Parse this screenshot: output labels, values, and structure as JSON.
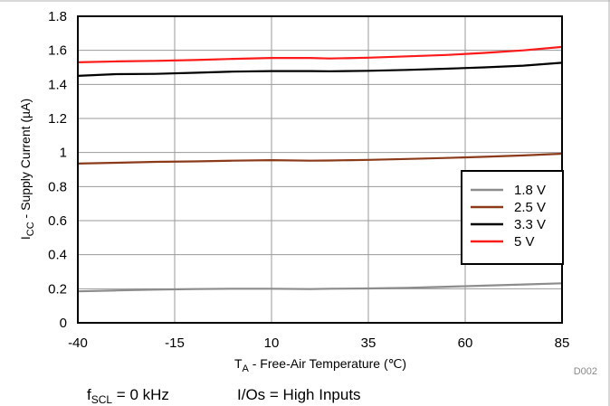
{
  "chart_data": {
    "type": "line",
    "x": [
      -40,
      -30,
      -20,
      -10,
      0,
      10,
      20,
      25,
      35,
      45,
      55,
      65,
      75,
      85
    ],
    "series": [
      {
        "name": "1.8 V",
        "color": "#8c8c8c",
        "values": [
          0.185,
          0.19,
          0.195,
          0.198,
          0.2,
          0.2,
          0.198,
          0.2,
          0.202,
          0.205,
          0.212,
          0.218,
          0.225,
          0.232
        ]
      },
      {
        "name": "2.5 V",
        "color": "#8b3a1a",
        "values": [
          0.935,
          0.94,
          0.945,
          0.948,
          0.952,
          0.955,
          0.952,
          0.953,
          0.957,
          0.962,
          0.968,
          0.975,
          0.983,
          0.993
        ]
      },
      {
        "name": "3.3 V",
        "color": "#000000",
        "values": [
          1.45,
          1.46,
          1.462,
          1.468,
          1.475,
          1.478,
          1.478,
          1.477,
          1.48,
          1.485,
          1.492,
          1.5,
          1.51,
          1.527
        ]
      },
      {
        "name": "5 V",
        "color": "#ff1a1a",
        "values": [
          1.53,
          1.535,
          1.538,
          1.543,
          1.55,
          1.555,
          1.555,
          1.552,
          1.557,
          1.565,
          1.573,
          1.585,
          1.6,
          1.62
        ]
      }
    ],
    "xticks": [
      "-40",
      "-15",
      "10",
      "35",
      "60",
      "85"
    ],
    "yticks": [
      "0",
      "0.2",
      "0.4",
      "0.6",
      "0.8",
      "1",
      "1.2",
      "1.4",
      "1.6",
      "1.8"
    ],
    "xlim": [
      -40,
      85
    ],
    "ylim": [
      0,
      1.8
    ],
    "xlabel": {
      "main": "T",
      "sub": "A",
      "rest": " - Free-Air Temperature (℃)"
    },
    "ylabel": {
      "main": "I",
      "sub": "CC",
      "rest": " - Supply Current (µA)"
    },
    "grid": true,
    "legend_position": "right",
    "figure_code": "D002"
  },
  "conditions": {
    "fscl_main": "f",
    "fscl_sub": "SCL",
    "fscl_rest": " = 0 kHz",
    "ios": "I/Os = High Inputs"
  }
}
